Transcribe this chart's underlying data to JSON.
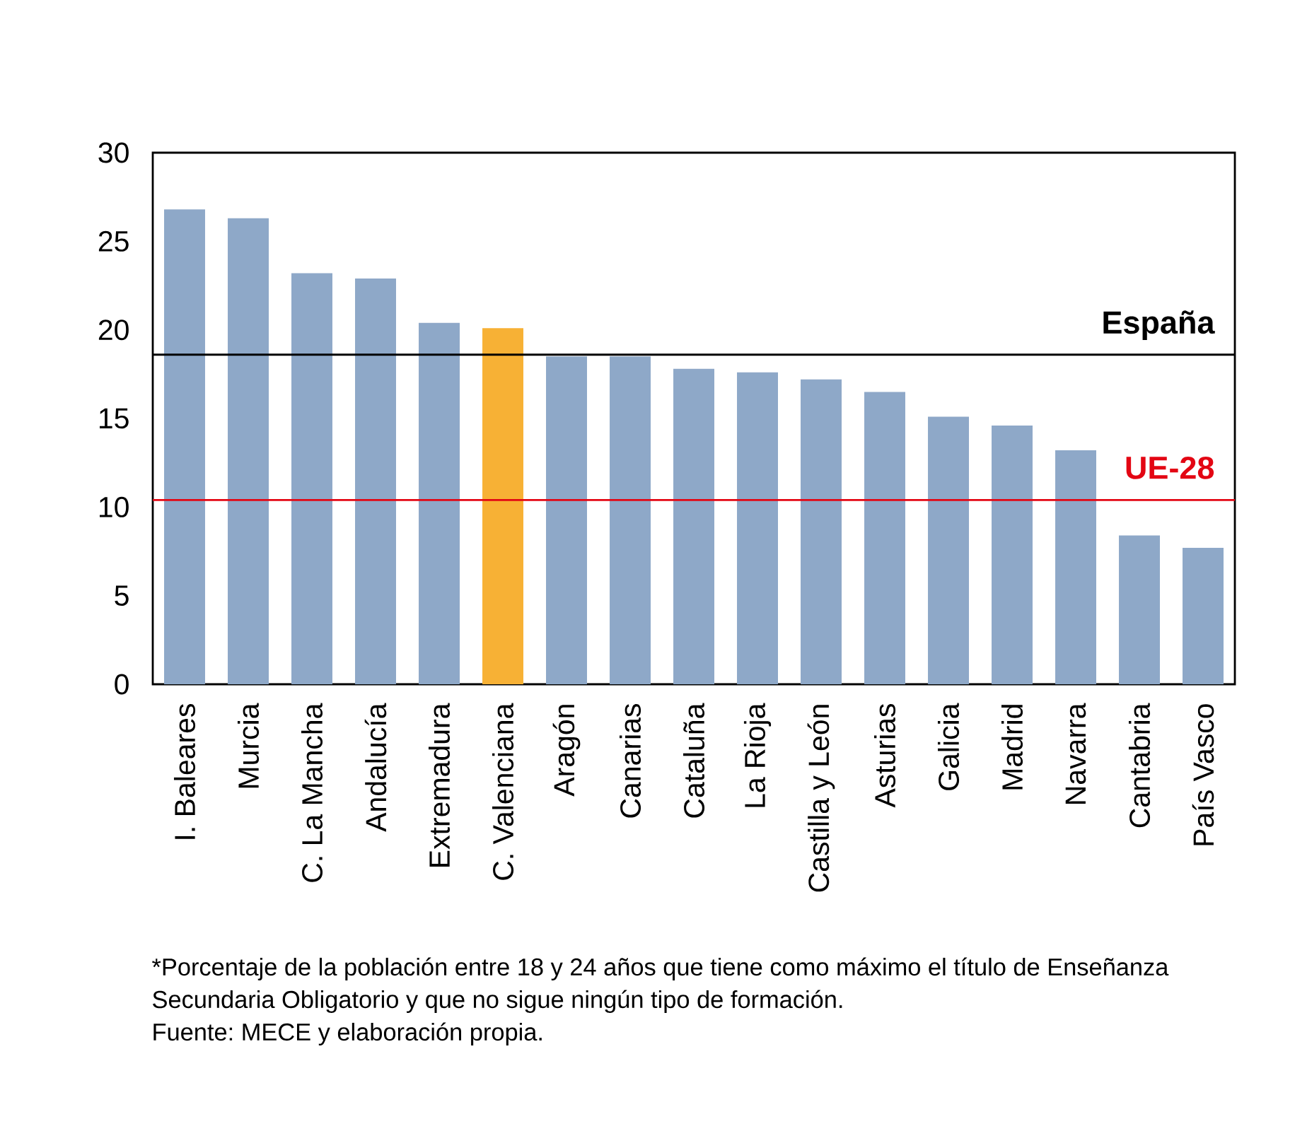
{
  "chart_data": {
    "type": "bar",
    "categories": [
      "I. Baleares",
      "Murcia",
      "C. La Mancha",
      "Andalucía",
      "Extremadura",
      "C. Valenciana",
      "Aragón",
      "Canarias",
      "Cataluña",
      "La Rioja",
      "Castilla y León",
      "Asturias",
      "Galicia",
      "Madrid",
      "Navarra",
      "Cantabria",
      "País Vasco"
    ],
    "values": [
      26.8,
      26.3,
      23.2,
      22.9,
      20.4,
      20.1,
      18.5,
      18.5,
      17.8,
      17.6,
      17.2,
      16.5,
      15.1,
      14.6,
      13.2,
      8.4,
      7.7
    ],
    "colors": [
      "#8ea8c8",
      "#8ea8c8",
      "#8ea8c8",
      "#8ea8c8",
      "#8ea8c8",
      "#f7b135",
      "#8ea8c8",
      "#8ea8c8",
      "#8ea8c8",
      "#8ea8c8",
      "#8ea8c8",
      "#8ea8c8",
      "#8ea8c8",
      "#8ea8c8",
      "#8ea8c8",
      "#8ea8c8",
      "#8ea8c8"
    ],
    "ylim": [
      0,
      30
    ],
    "yticks": [
      0,
      5,
      10,
      15,
      20,
      25,
      30
    ],
    "ref_lines": [
      {
        "axis": "y",
        "value": 18.6,
        "label": "España",
        "color": "#000000"
      },
      {
        "axis": "y",
        "value": 10.4,
        "label": "UE-28",
        "color": "#e30613"
      }
    ],
    "annotations": [
      "*Porcentaje de la población entre 18 y 24 años que tiene como máximo el título de Enseñanza Secundaria Obligatorio y que no sigue ningún tipo de formación.",
      "Fuente: MECE y elaboración propia."
    ]
  }
}
